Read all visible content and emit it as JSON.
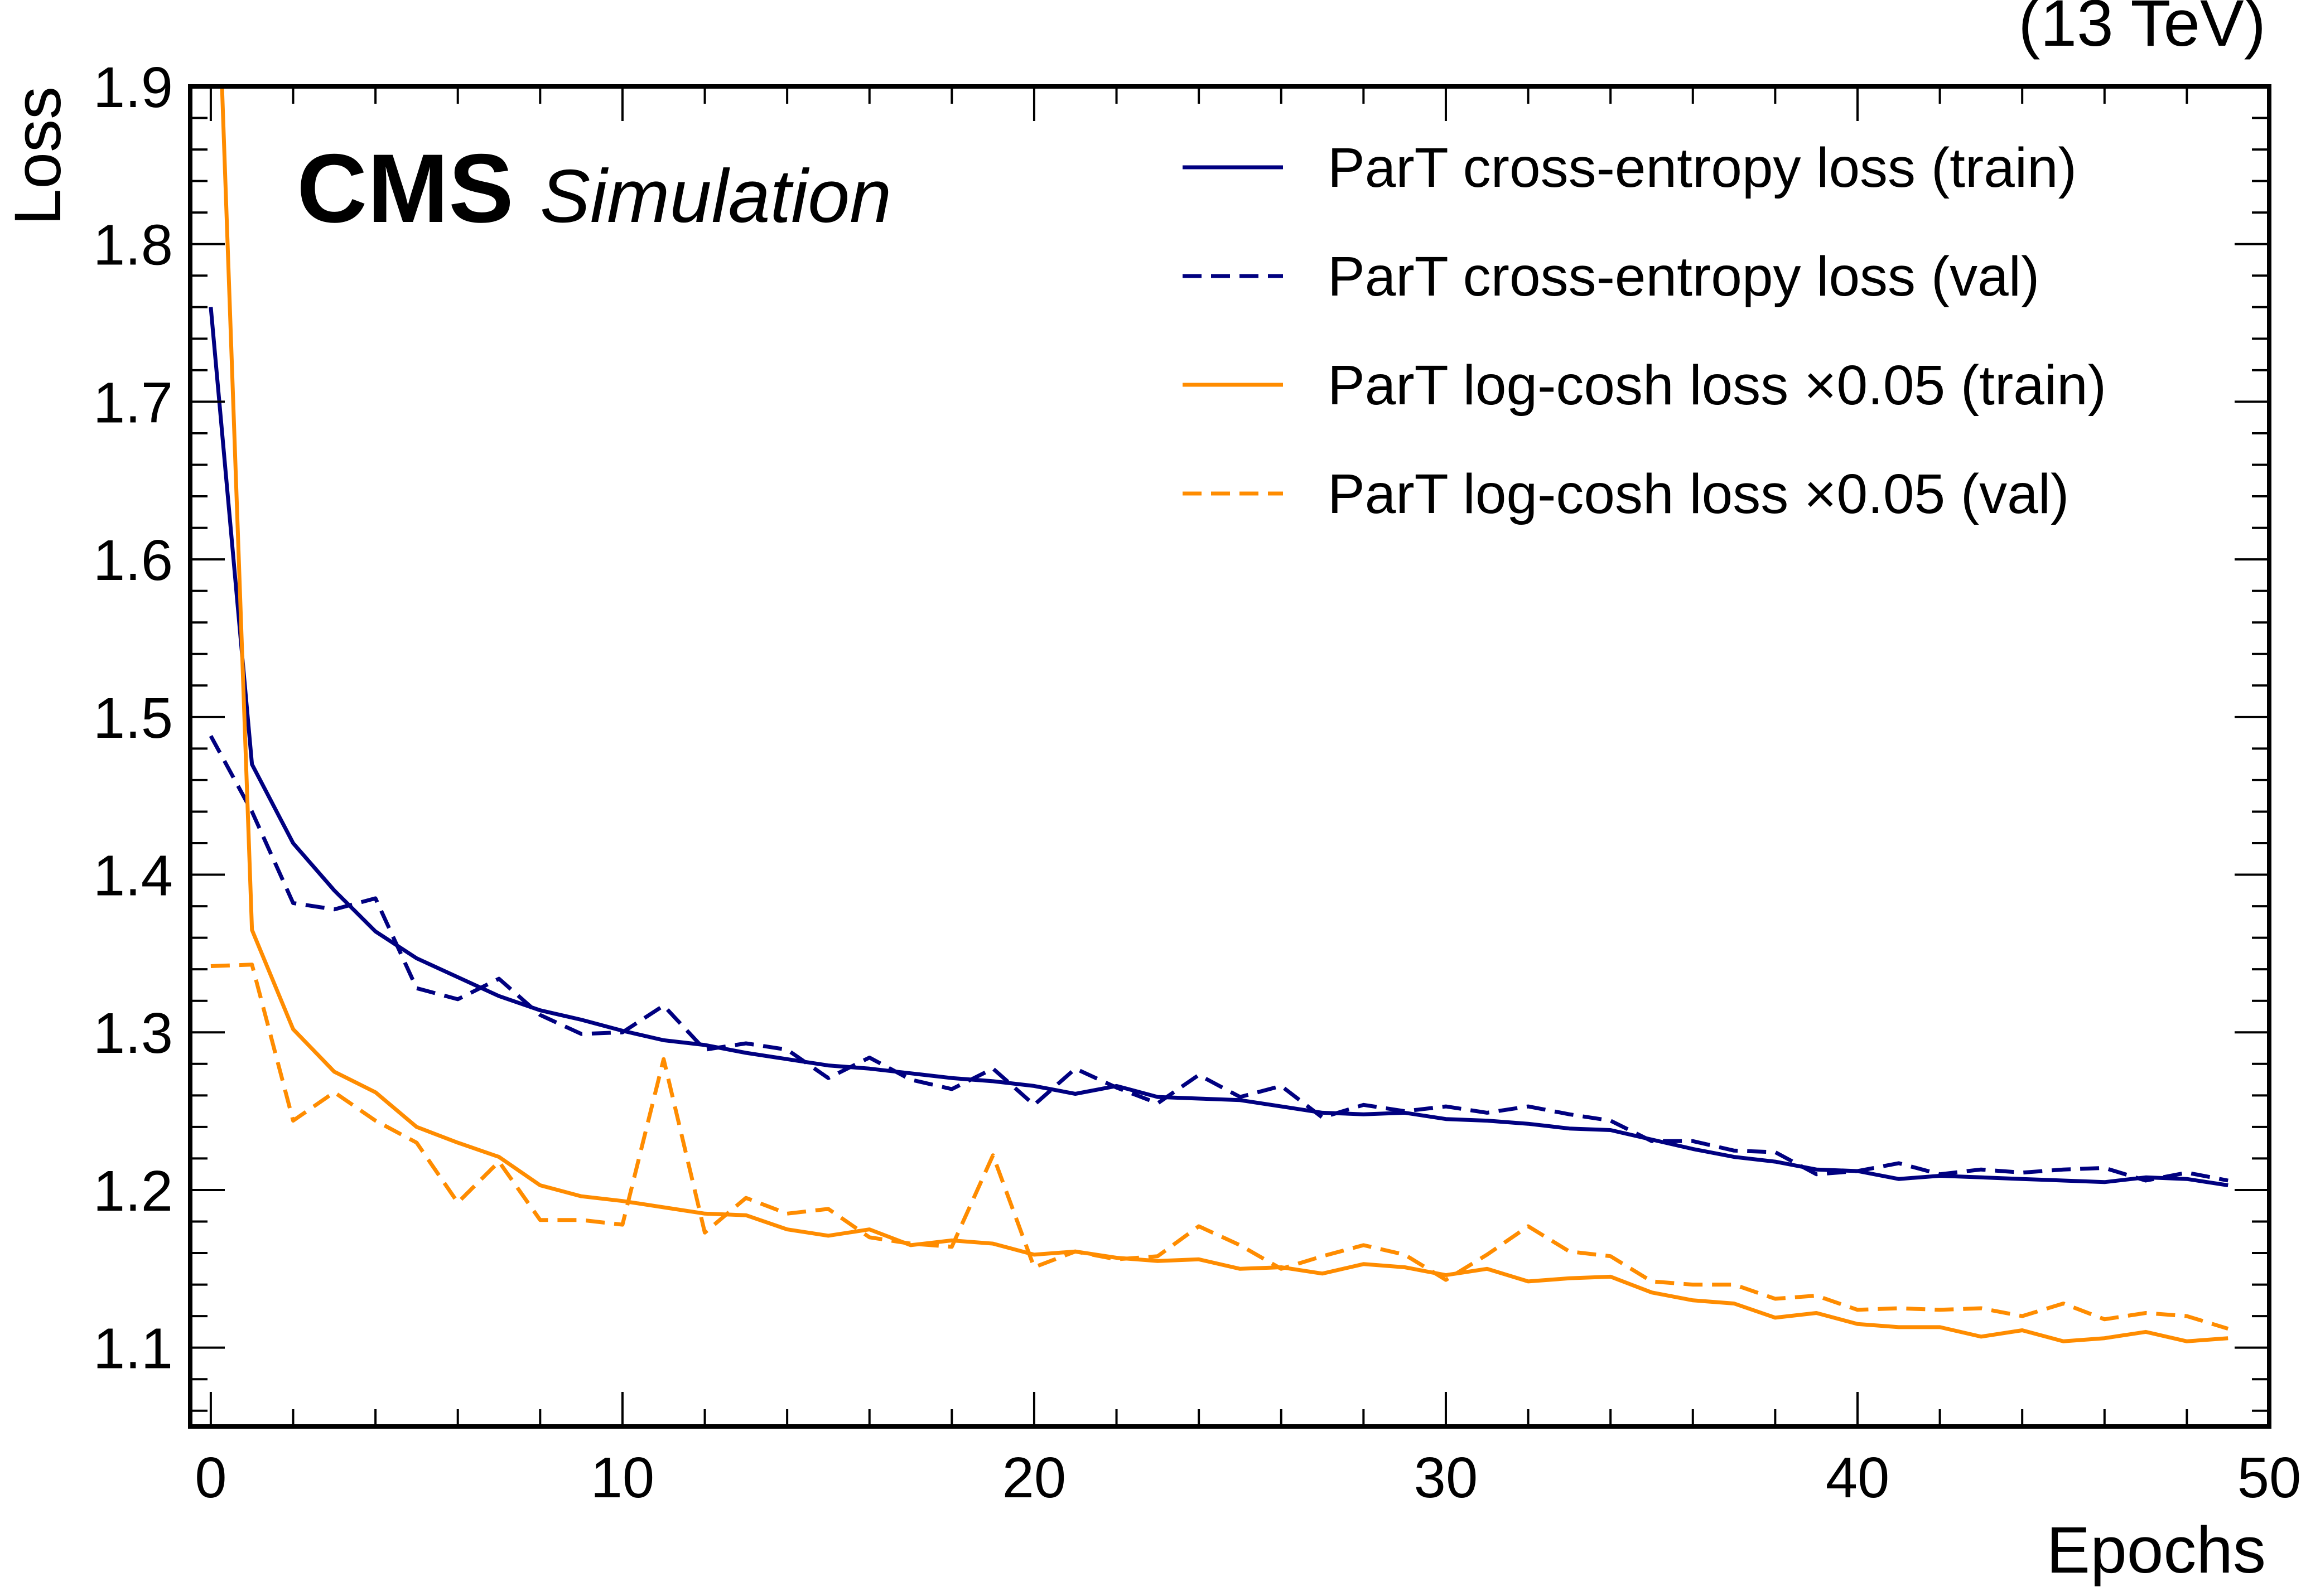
{
  "header": {
    "energy_label": "(13 TeV)",
    "experiment": "CMS",
    "status": "Simulation"
  },
  "colors": {
    "navy": "#000080",
    "orange": "#ff8c00"
  },
  "chart_data": {
    "type": "line",
    "title": "",
    "xlabel": "Epochs",
    "ylabel": "Loss",
    "xlim": [
      -0.5,
      50
    ],
    "ylim": [
      1.05,
      1.9
    ],
    "x_ticks": [
      0,
      10,
      20,
      30,
      40,
      50
    ],
    "y_ticks": [
      1.1,
      1.2,
      1.3,
      1.4,
      1.5,
      1.6,
      1.7,
      1.8,
      1.9
    ],
    "x_tick_labels": [
      "0",
      "10",
      "20",
      "30",
      "40",
      "50"
    ],
    "y_tick_labels": [
      "1.1",
      "1.2",
      "1.3",
      "1.4",
      "1.5",
      "1.6",
      "1.7",
      "1.8",
      "1.9"
    ],
    "grid": false,
    "legend_position": "top-right",
    "x": [
      0,
      1,
      2,
      3,
      4,
      5,
      6,
      7,
      8,
      9,
      10,
      11,
      12,
      13,
      14,
      15,
      16,
      17,
      18,
      19,
      20,
      21,
      22,
      23,
      24,
      25,
      26,
      27,
      28,
      29,
      30,
      31,
      32,
      33,
      34,
      35,
      36,
      37,
      38,
      39,
      40,
      41,
      42,
      43,
      44,
      45,
      46,
      47,
      48,
      49
    ],
    "series": [
      {
        "name": "ParT cross-entropy loss (train)",
        "color": "#000080",
        "style": "solid",
        "values": [
          1.76,
          1.47,
          1.42,
          1.39,
          1.364,
          1.347,
          1.335,
          1.323,
          1.314,
          1.308,
          1.301,
          1.295,
          1.292,
          1.287,
          1.283,
          1.279,
          1.277,
          1.274,
          1.271,
          1.269,
          1.266,
          1.261,
          1.266,
          1.259,
          1.258,
          1.257,
          1.253,
          1.249,
          1.248,
          1.249,
          1.245,
          1.244,
          1.242,
          1.239,
          1.238,
          1.232,
          1.226,
          1.221,
          1.218,
          1.213,
          1.212,
          1.207,
          1.209,
          1.208,
          1.207,
          1.206,
          1.205,
          1.208,
          1.207,
          1.203
        ]
      },
      {
        "name": "ParT cross-entropy loss (val)",
        "color": "#000080",
        "style": "dashed",
        "values": [
          1.488,
          1.44,
          1.382,
          1.378,
          1.385,
          1.328,
          1.321,
          1.334,
          1.311,
          1.299,
          1.3,
          1.317,
          1.289,
          1.293,
          1.289,
          1.271,
          1.284,
          1.27,
          1.264,
          1.277,
          1.254,
          1.277,
          1.265,
          1.255,
          1.273,
          1.259,
          1.266,
          1.246,
          1.254,
          1.25,
          1.253,
          1.249,
          1.253,
          1.248,
          1.244,
          1.231,
          1.231,
          1.225,
          1.224,
          1.21,
          1.212,
          1.217,
          1.21,
          1.213,
          1.211,
          1.213,
          1.214,
          1.206,
          1.211,
          1.206
        ]
      },
      {
        "name": "ParT log-cosh loss ×0.05 (train)",
        "color": "#ff8c00",
        "style": "solid",
        "values": [
          2.1,
          1.365,
          1.302,
          1.275,
          1.262,
          1.24,
          1.23,
          1.221,
          1.203,
          1.196,
          1.193,
          1.189,
          1.185,
          1.184,
          1.175,
          1.171,
          1.175,
          1.165,
          1.168,
          1.166,
          1.159,
          1.161,
          1.157,
          1.155,
          1.156,
          1.15,
          1.151,
          1.147,
          1.153,
          1.151,
          1.146,
          1.15,
          1.142,
          1.144,
          1.145,
          1.135,
          1.13,
          1.128,
          1.119,
          1.122,
          1.115,
          1.113,
          1.113,
          1.107,
          1.111,
          1.104,
          1.106,
          1.11,
          1.104,
          1.106
        ]
      },
      {
        "name": "ParT log-cosh loss ×0.05 (val)",
        "color": "#ff8c00",
        "style": "dashed",
        "values": [
          1.342,
          1.343,
          1.244,
          1.262,
          1.244,
          1.23,
          1.192,
          1.218,
          1.181,
          1.181,
          1.178,
          1.283,
          1.173,
          1.195,
          1.185,
          1.188,
          1.17,
          1.166,
          1.164,
          1.222,
          1.151,
          1.161,
          1.156,
          1.158,
          1.177,
          1.165,
          1.15,
          1.158,
          1.165,
          1.159,
          1.143,
          1.159,
          1.177,
          1.161,
          1.158,
          1.142,
          1.14,
          1.14,
          1.131,
          1.133,
          1.124,
          1.125,
          1.124,
          1.125,
          1.12,
          1.128,
          1.118,
          1.122,
          1.12,
          1.112
        ]
      }
    ]
  }
}
